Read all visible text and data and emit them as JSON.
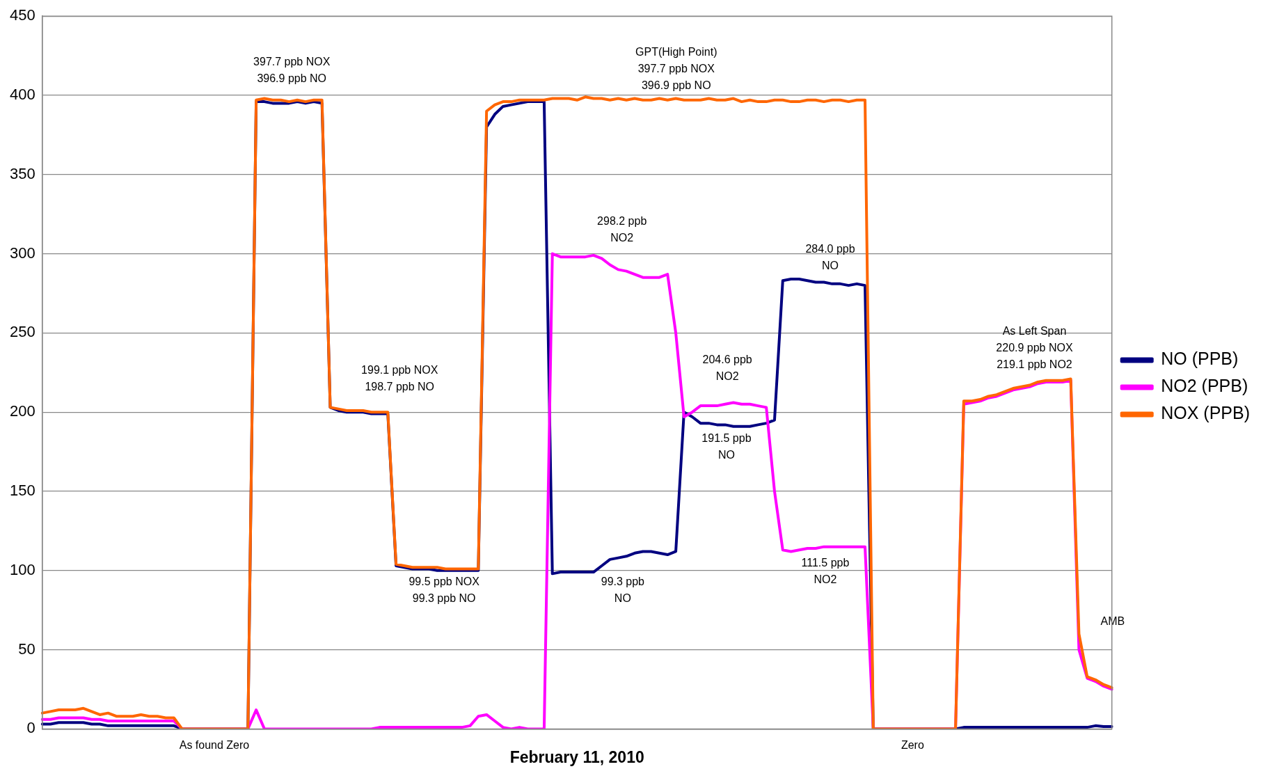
{
  "chart_data": {
    "type": "line",
    "xlabel": "February 11, 2010",
    "categories": [
      null,
      null,
      null,
      null,
      null,
      null,
      null,
      null,
      null,
      null,
      null,
      null,
      null,
      null,
      null,
      null,
      null,
      null,
      null,
      null,
      null,
      null,
      null,
      null,
      null,
      null,
      null,
      null,
      null,
      null,
      null,
      null,
      null,
      null,
      null,
      null,
      null,
      null,
      null,
      null,
      null,
      null,
      null,
      null,
      null,
      null,
      null,
      null,
      null,
      null,
      null,
      null,
      null,
      null,
      null,
      null,
      null,
      null,
      null,
      null,
      null,
      null,
      null,
      null,
      null,
      null,
      null,
      null,
      null,
      null,
      null,
      null,
      null,
      null,
      null,
      null,
      null,
      null,
      null,
      null,
      null,
      null,
      null,
      null,
      null,
      null,
      null,
      null,
      null,
      null,
      null,
      null,
      null,
      null,
      null,
      null,
      null,
      null,
      null,
      null,
      null,
      null,
      null,
      null,
      null,
      null,
      null,
      null,
      null,
      null,
      null,
      null,
      null,
      null,
      null,
      null,
      null,
      null,
      null,
      null,
      null,
      null,
      null,
      null,
      null,
      null,
      null,
      null,
      null,
      null,
      null
    ],
    "series": [
      {
        "name": "NO (PPB)",
        "color": "#000080",
        "values": [
          3,
          3,
          4,
          4,
          4,
          4,
          3,
          3,
          2,
          2,
          2,
          2,
          2,
          2,
          2,
          2,
          2,
          0,
          0,
          0,
          0,
          0,
          0,
          0,
          0,
          0,
          396,
          396,
          395,
          395,
          395,
          396,
          395,
          396,
          395,
          203,
          201,
          200,
          200,
          200,
          199,
          199,
          199,
          103,
          102,
          101,
          101,
          101,
          100,
          100,
          100,
          100,
          100,
          100,
          380,
          388,
          393,
          394,
          395,
          396,
          396,
          396,
          98,
          99,
          99,
          99,
          99,
          99,
          103,
          107,
          108,
          109,
          111,
          112,
          112,
          111,
          110,
          112,
          200,
          197,
          193,
          193,
          192,
          192,
          191,
          191,
          191,
          192,
          193,
          195,
          283,
          284,
          284,
          283,
          282,
          282,
          281,
          281,
          280,
          281,
          280,
          0,
          0,
          0,
          0,
          0,
          0,
          0,
          0,
          0,
          0,
          0,
          1,
          1,
          1,
          1,
          1,
          1,
          1,
          1,
          1,
          1,
          1,
          1,
          1,
          1,
          1,
          1,
          2,
          1.5,
          1.5
        ]
      },
      {
        "name": "NO2 (PPB)",
        "color": "#ff00ff",
        "values": [
          6,
          6,
          7,
          7,
          7,
          7,
          6,
          6,
          5,
          5,
          5,
          5,
          5,
          5,
          5,
          5,
          5,
          0,
          0,
          0,
          0,
          0,
          0,
          0,
          0,
          0,
          12,
          0,
          0,
          0,
          0,
          0,
          0,
          0,
          0,
          0,
          0,
          0,
          0,
          0,
          0,
          1,
          1,
          1,
          1,
          1,
          1,
          1,
          1,
          1,
          1,
          1,
          2,
          8,
          9,
          5,
          1,
          0,
          1,
          0,
          0,
          0,
          300,
          298,
          298,
          298,
          298,
          299,
          297,
          293,
          290,
          289,
          287,
          285,
          285,
          285,
          287,
          250,
          197,
          200,
          204,
          204,
          204,
          205,
          206,
          205,
          205,
          204,
          203,
          150,
          113,
          112,
          113,
          114,
          114,
          115,
          115,
          115,
          115,
          115,
          115,
          0,
          0,
          0,
          0,
          0,
          0,
          0,
          0,
          0,
          0,
          0,
          205,
          206,
          207,
          209,
          210,
          212,
          214,
          215,
          216,
          218,
          219,
          219,
          219,
          220,
          50,
          32,
          30,
          27,
          25
        ]
      },
      {
        "name": "NOX (PPB)",
        "color": "#ff6600",
        "values": [
          10,
          11,
          12,
          12,
          12,
          13,
          11,
          9,
          10,
          8,
          8,
          8,
          9,
          8,
          8,
          7,
          7,
          0,
          0,
          0,
          0,
          0,
          0,
          0,
          0,
          0,
          397,
          398,
          397,
          397,
          396,
          397,
          396,
          397,
          397,
          203,
          202,
          201,
          201,
          201,
          200,
          200,
          200,
          104,
          103,
          102,
          102,
          102,
          102,
          101,
          101,
          101,
          101,
          101,
          390,
          394,
          396,
          396,
          397,
          397,
          397,
          397,
          398,
          398,
          398,
          397,
          399,
          398,
          398,
          397,
          398,
          397,
          398,
          397,
          397,
          398,
          397,
          398,
          397,
          397,
          397,
          398,
          397,
          397,
          398,
          396,
          397,
          396,
          396,
          397,
          397,
          396,
          396,
          397,
          397,
          396,
          397,
          397,
          396,
          397,
          397,
          0,
          0,
          0,
          0,
          0,
          0,
          0,
          0,
          0,
          0,
          0,
          207,
          207,
          208,
          210,
          211,
          213,
          215,
          216,
          217,
          219,
          220,
          220,
          220,
          221,
          60,
          33,
          31,
          28,
          26
        ]
      }
    ],
    "ylim": [
      0,
      450
    ],
    "yticks": [
      0,
      50,
      100,
      150,
      200,
      250,
      300,
      350,
      400,
      450
    ],
    "grid": "y",
    "legend": "right",
    "tick_labels": "y",
    "marker": "none",
    "line_style": "solid",
    "annotations": [
      "397.7 ppb NOX\n396.9 ppb NO",
      "GPT(High Point)\n397.7 ppb NOX\n396.9 ppb NO",
      "298.2 ppb\nNO2",
      "284.0 ppb\nNO",
      "199.1 ppb NOX\n198.7 ppb NO",
      "204.6 ppb\nNO2",
      "191.5 ppb\nNO",
      "As Left Span\n220.9 ppb NOX\n219.1 ppb NO2",
      "99.5 ppb NOX\n99.3 ppb NO",
      "99.3 ppb\nNO",
      "111.5 ppb\nNO2",
      "AMB",
      "As found Zero",
      "Zero"
    ]
  }
}
